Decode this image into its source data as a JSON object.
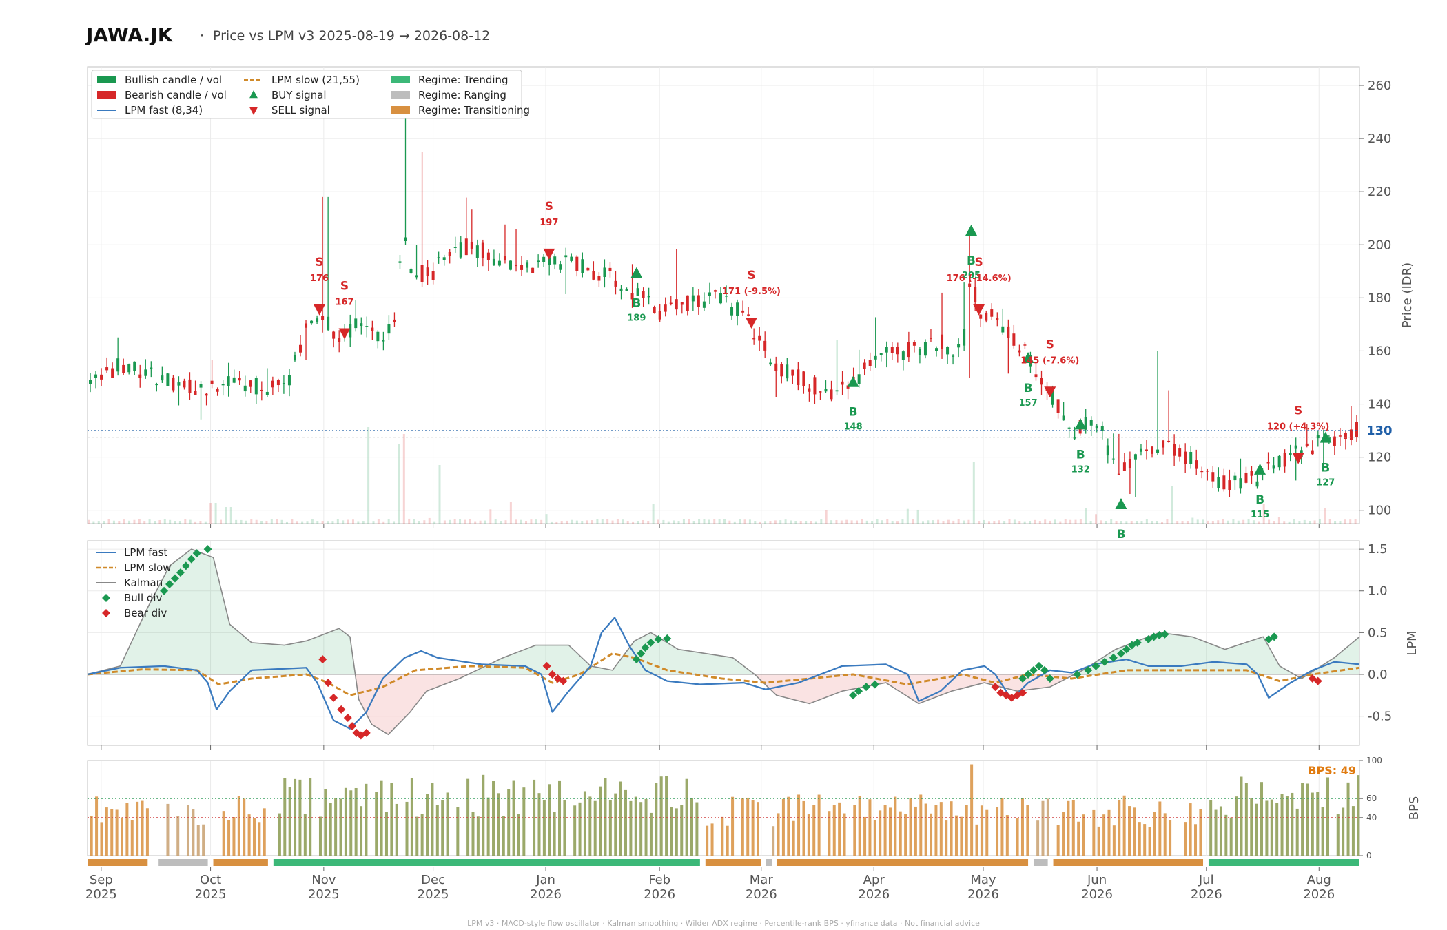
{
  "header": {
    "ticker": "JAWA.JK",
    "separator": "·",
    "subtitle": "Price vs LPM v3  2025-08-19 → 2026-08-12"
  },
  "footer": "LPM v3  ·  MACD-style flow oscillator  ·  Kalman smoothing  ·  Wilder ADX regime  ·  Percentile-rank BPS  ·  yfinance data  ·  Not financial advice",
  "colors": {
    "bull": "#1a9850",
    "bear": "#d62728",
    "fast": "#3a7abf",
    "slow": "#d08a2a",
    "kalman": "#888888",
    "trend": "#3cb878",
    "range": "#bdbdbd",
    "trans": "#d89040",
    "last_price": "#1f5fa8",
    "bps_label": "#e07b10"
  },
  "x_months": [
    {
      "m": "Sep",
      "y": "2025",
      "d": 0.125
    },
    {
      "m": "Oct",
      "y": "2025",
      "d": 1.125
    },
    {
      "m": "Nov",
      "y": "2025",
      "d": 2.16
    },
    {
      "m": "Dec",
      "y": "2025",
      "d": 3.16
    },
    {
      "m": "Jan",
      "y": "2026",
      "d": 4.19
    },
    {
      "m": "Feb",
      "y": "2026",
      "d": 5.23
    },
    {
      "m": "Mar",
      "y": "2026",
      "d": 6.16
    },
    {
      "m": "Apr",
      "y": "2026",
      "d": 7.19
    },
    {
      "m": "May",
      "y": "2026",
      "d": 8.19
    },
    {
      "m": "Jun",
      "y": "2026",
      "d": 9.23
    },
    {
      "m": "Jul",
      "y": "2026",
      "d": 10.23
    },
    {
      "m": "Aug",
      "y": "2026",
      "d": 11.26
    }
  ],
  "price_panel": {
    "ylabel": "Price (IDR)",
    "ylim": [
      95,
      267
    ],
    "yticks": [
      100,
      120,
      140,
      160,
      180,
      200,
      220,
      240,
      260
    ],
    "last_price": 130,
    "last_label": "130",
    "legend": [
      {
        "kind": "bar",
        "color": "bull",
        "label": "Bullish candle / vol"
      },
      {
        "kind": "bar",
        "color": "bear",
        "label": "Bearish candle / vol"
      },
      {
        "kind": "line",
        "color": "fast",
        "label": "LPM fast (8,34)"
      },
      {
        "kind": "dash",
        "color": "slow",
        "label": "LPM slow (21,55)"
      },
      {
        "kind": "up",
        "color": "bull",
        "label": "BUY signal"
      },
      {
        "kind": "down",
        "color": "bear",
        "label": "SELL signal"
      },
      {
        "kind": "bar",
        "color": "trend",
        "label": "Regime: Trending"
      },
      {
        "kind": "bar",
        "color": "range",
        "label": "Regime: Ranging"
      },
      {
        "kind": "bar",
        "color": "trans",
        "label": "Regime: Transitioning"
      }
    ]
  },
  "signals": [
    {
      "type": "S",
      "x": 2.12,
      "price": 176,
      "label": "176"
    },
    {
      "type": "S",
      "x": 2.35,
      "price": 167,
      "label": "167"
    },
    {
      "type": "S",
      "x": 4.22,
      "price": 197,
      "label": "197"
    },
    {
      "type": "B",
      "x": 5.02,
      "price": 189,
      "label": "189"
    },
    {
      "type": "S",
      "x": 6.07,
      "price": 171,
      "label": "171 (-9.5%)"
    },
    {
      "type": "B",
      "x": 7.0,
      "price": 148,
      "label": "148"
    },
    {
      "type": "B",
      "x": 8.08,
      "price": 205,
      "label": "205"
    },
    {
      "type": "S",
      "x": 8.15,
      "price": 176,
      "label": "176 (-14.6%)"
    },
    {
      "type": "B",
      "x": 8.6,
      "price": 157,
      "label": "157"
    },
    {
      "type": "S",
      "x": 8.8,
      "price": 145,
      "label": "145 (-7.6%)"
    },
    {
      "type": "B",
      "x": 9.08,
      "price": 132,
      "label": "132"
    },
    {
      "type": "B",
      "x": 9.45,
      "price": 102,
      "label": "B"
    },
    {
      "type": "B",
      "x": 10.72,
      "price": 115,
      "label": "115"
    },
    {
      "type": "S",
      "x": 11.07,
      "price": 120,
      "label": "120 (+4.3%)"
    },
    {
      "type": "B",
      "x": 11.32,
      "price": 127,
      "label": "127"
    }
  ],
  "lpm_panel": {
    "ylabel": "LPM",
    "ylim": [
      -0.85,
      1.6
    ],
    "yticks": [
      -0.5,
      0.0,
      0.5,
      1.0,
      1.5
    ],
    "legend": [
      {
        "kind": "line",
        "color": "fast",
        "label": "LPM fast"
      },
      {
        "kind": "dash",
        "color": "slow",
        "label": "LPM slow"
      },
      {
        "kind": "line",
        "color": "kalman",
        "label": "Kalman"
      },
      {
        "kind": "diamond",
        "color": "bull",
        "label": "Bull div"
      },
      {
        "kind": "diamond",
        "color": "bear",
        "label": "Bear div"
      }
    ]
  },
  "bps_panel": {
    "ylabel": "BPS",
    "ylim": [
      0,
      100
    ],
    "yticks": [
      0,
      40,
      60,
      100
    ],
    "label": "BPS: 49",
    "line_high": 60,
    "line_low": 40
  },
  "chart_data": {
    "type": "candlestick",
    "title": "JAWA.JK · Price vs LPM v3  2025-08-19 → 2026-08-12",
    "ylabel": "Price (IDR)",
    "ylim": [
      95,
      267
    ],
    "price_path": [
      [
        0,
        148
      ],
      [
        0.3,
        155
      ],
      [
        0.6,
        150
      ],
      [
        1.0,
        145
      ],
      [
        1.3,
        148
      ],
      [
        1.6,
        146
      ],
      [
        1.85,
        150
      ],
      [
        2.0,
        168
      ],
      [
        2.15,
        172
      ],
      [
        2.3,
        165
      ],
      [
        2.5,
        170
      ],
      [
        2.7,
        166
      ],
      [
        2.82,
        172
      ],
      [
        2.88,
        205
      ],
      [
        2.95,
        193
      ],
      [
        3.1,
        188
      ],
      [
        3.3,
        195
      ],
      [
        3.5,
        200
      ],
      [
        3.8,
        193
      ],
      [
        4.0,
        190
      ],
      [
        4.2,
        195
      ],
      [
        4.5,
        192
      ],
      [
        4.8,
        188
      ],
      [
        5.0,
        182
      ],
      [
        5.2,
        175
      ],
      [
        5.5,
        178
      ],
      [
        5.8,
        180
      ],
      [
        6.0,
        173
      ],
      [
        6.3,
        155
      ],
      [
        6.6,
        148
      ],
      [
        6.8,
        143
      ],
      [
        7.0,
        148
      ],
      [
        7.2,
        158
      ],
      [
        7.5,
        160
      ],
      [
        7.8,
        163
      ],
      [
        8.0,
        160
      ],
      [
        8.08,
        188
      ],
      [
        8.15,
        175
      ],
      [
        8.3,
        172
      ],
      [
        8.6,
        158
      ],
      [
        8.8,
        145
      ],
      [
        9.0,
        128
      ],
      [
        9.2,
        135
      ],
      [
        9.4,
        118
      ],
      [
        9.5,
        115
      ],
      [
        9.7,
        125
      ],
      [
        10.0,
        122
      ],
      [
        10.2,
        115
      ],
      [
        10.4,
        110
      ],
      [
        10.7,
        112
      ],
      [
        10.9,
        118
      ],
      [
        11.1,
        122
      ],
      [
        11.3,
        126
      ],
      [
        11.6,
        130
      ]
    ],
    "lpm_fast": [
      [
        0,
        0
      ],
      [
        0.3,
        0.08
      ],
      [
        0.7,
        0.1
      ],
      [
        1.0,
        0.05
      ],
      [
        1.1,
        -0.1
      ],
      [
        1.18,
        -0.42
      ],
      [
        1.3,
        -0.2
      ],
      [
        1.5,
        0.05
      ],
      [
        2.0,
        0.08
      ],
      [
        2.1,
        -0.1
      ],
      [
        2.25,
        -0.55
      ],
      [
        2.4,
        -0.65
      ],
      [
        2.55,
        -0.45
      ],
      [
        2.7,
        -0.05
      ],
      [
        2.9,
        0.2
      ],
      [
        3.05,
        0.28
      ],
      [
        3.2,
        0.2
      ],
      [
        3.6,
        0.12
      ],
      [
        4.0,
        0.1
      ],
      [
        4.15,
        0.0
      ],
      [
        4.25,
        -0.45
      ],
      [
        4.4,
        -0.2
      ],
      [
        4.6,
        0.1
      ],
      [
        4.7,
        0.5
      ],
      [
        4.82,
        0.68
      ],
      [
        4.95,
        0.35
      ],
      [
        5.1,
        0.05
      ],
      [
        5.3,
        -0.08
      ],
      [
        5.6,
        -0.12
      ],
      [
        6.0,
        -0.1
      ],
      [
        6.2,
        -0.18
      ],
      [
        6.5,
        -0.1
      ],
      [
        6.9,
        0.1
      ],
      [
        7.3,
        0.12
      ],
      [
        7.5,
        0.0
      ],
      [
        7.6,
        -0.32
      ],
      [
        7.8,
        -0.2
      ],
      [
        8.0,
        0.05
      ],
      [
        8.2,
        0.1
      ],
      [
        8.3,
        0.0
      ],
      [
        8.45,
        -0.3
      ],
      [
        8.6,
        -0.1
      ],
      [
        8.8,
        0.05
      ],
      [
        9.0,
        0.02
      ],
      [
        9.2,
        0.12
      ],
      [
        9.5,
        0.18
      ],
      [
        9.7,
        0.1
      ],
      [
        10.0,
        0.1
      ],
      [
        10.3,
        0.15
      ],
      [
        10.6,
        0.12
      ],
      [
        10.7,
        0.0
      ],
      [
        10.8,
        -0.28
      ],
      [
        11.0,
        -0.1
      ],
      [
        11.2,
        0.05
      ],
      [
        11.4,
        0.15
      ],
      [
        11.63,
        0.12
      ]
    ],
    "lpm_slow": [
      [
        0,
        0
      ],
      [
        0.5,
        0.06
      ],
      [
        1.0,
        0.05
      ],
      [
        1.2,
        -0.12
      ],
      [
        1.5,
        -0.05
      ],
      [
        2.0,
        0.0
      ],
      [
        2.2,
        -0.1
      ],
      [
        2.4,
        -0.25
      ],
      [
        2.7,
        -0.15
      ],
      [
        3.0,
        0.05
      ],
      [
        3.5,
        0.1
      ],
      [
        4.0,
        0.08
      ],
      [
        4.25,
        -0.1
      ],
      [
        4.5,
        0.0
      ],
      [
        4.8,
        0.25
      ],
      [
        5.0,
        0.2
      ],
      [
        5.3,
        0.05
      ],
      [
        5.8,
        -0.05
      ],
      [
        6.2,
        -0.1
      ],
      [
        6.6,
        -0.05
      ],
      [
        7.0,
        0.0
      ],
      [
        7.5,
        -0.12
      ],
      [
        8.0,
        0.0
      ],
      [
        8.3,
        -0.1
      ],
      [
        8.6,
        0.0
      ],
      [
        9.0,
        -0.05
      ],
      [
        9.5,
        0.05
      ],
      [
        10.0,
        0.05
      ],
      [
        10.6,
        0.05
      ],
      [
        10.9,
        -0.08
      ],
      [
        11.2,
        0.0
      ],
      [
        11.63,
        0.08
      ]
    ],
    "kalman": [
      [
        0,
        0
      ],
      [
        0.3,
        0.1
      ],
      [
        0.55,
        0.8
      ],
      [
        0.75,
        1.3
      ],
      [
        0.95,
        1.5
      ],
      [
        1.15,
        1.4
      ],
      [
        1.3,
        0.6
      ],
      [
        1.5,
        0.38
      ],
      [
        1.8,
        0.35
      ],
      [
        2.0,
        0.4
      ],
      [
        2.2,
        0.5
      ],
      [
        2.3,
        0.55
      ],
      [
        2.4,
        0.45
      ],
      [
        2.48,
        -0.3
      ],
      [
        2.6,
        -0.6
      ],
      [
        2.75,
        -0.72
      ],
      [
        2.95,
        -0.45
      ],
      [
        3.1,
        -0.2
      ],
      [
        3.4,
        -0.05
      ],
      [
        3.8,
        0.2
      ],
      [
        4.1,
        0.35
      ],
      [
        4.4,
        0.35
      ],
      [
        4.6,
        0.1
      ],
      [
        4.8,
        0.05
      ],
      [
        5.0,
        0.4
      ],
      [
        5.15,
        0.5
      ],
      [
        5.4,
        0.3
      ],
      [
        5.9,
        0.2
      ],
      [
        6.1,
        0.0
      ],
      [
        6.3,
        -0.25
      ],
      [
        6.6,
        -0.35
      ],
      [
        6.9,
        -0.2
      ],
      [
        7.3,
        -0.1
      ],
      [
        7.6,
        -0.35
      ],
      [
        7.9,
        -0.2
      ],
      [
        8.2,
        -0.1
      ],
      [
        8.5,
        -0.2
      ],
      [
        8.8,
        -0.15
      ],
      [
        9.1,
        0.05
      ],
      [
        9.4,
        0.3
      ],
      [
        9.8,
        0.5
      ],
      [
        10.1,
        0.45
      ],
      [
        10.4,
        0.3
      ],
      [
        10.75,
        0.45
      ],
      [
        10.9,
        0.1
      ],
      [
        11.1,
        -0.05
      ],
      [
        11.4,
        0.2
      ],
      [
        11.63,
        0.45
      ]
    ],
    "bull_div": [
      [
        0.7,
        1.0
      ],
      [
        0.75,
        1.08
      ],
      [
        0.8,
        1.15
      ],
      [
        0.85,
        1.22
      ],
      [
        0.9,
        1.3
      ],
      [
        0.95,
        1.38
      ],
      [
        1.0,
        1.45
      ],
      [
        1.1,
        1.5
      ],
      [
        5.02,
        0.18
      ],
      [
        5.06,
        0.25
      ],
      [
        5.1,
        0.32
      ],
      [
        5.15,
        0.38
      ],
      [
        5.22,
        0.42
      ],
      [
        5.3,
        0.43
      ],
      [
        7.0,
        -0.25
      ],
      [
        7.05,
        -0.2
      ],
      [
        7.12,
        -0.15
      ],
      [
        7.2,
        -0.12
      ],
      [
        8.55,
        -0.05
      ],
      [
        8.6,
        0.0
      ],
      [
        8.65,
        0.05
      ],
      [
        8.7,
        0.1
      ],
      [
        8.75,
        0.05
      ],
      [
        8.8,
        -0.05
      ],
      [
        9.05,
        0.0
      ],
      [
        9.15,
        0.05
      ],
      [
        9.22,
        0.1
      ],
      [
        9.3,
        0.15
      ],
      [
        9.38,
        0.2
      ],
      [
        9.45,
        0.25
      ],
      [
        9.5,
        0.3
      ],
      [
        9.55,
        0.35
      ],
      [
        9.6,
        0.38
      ],
      [
        9.7,
        0.42
      ],
      [
        9.75,
        0.45
      ],
      [
        9.8,
        0.47
      ],
      [
        9.85,
        0.48
      ],
      [
        10.8,
        0.42
      ],
      [
        10.85,
        0.45
      ]
    ],
    "bear_div": [
      [
        2.15,
        0.18
      ],
      [
        2.2,
        -0.1
      ],
      [
        2.25,
        -0.28
      ],
      [
        2.32,
        -0.42
      ],
      [
        2.38,
        -0.52
      ],
      [
        2.42,
        -0.62
      ],
      [
        2.46,
        -0.7
      ],
      [
        2.5,
        -0.73
      ],
      [
        2.55,
        -0.7
      ],
      [
        4.2,
        0.1
      ],
      [
        4.25,
        0.0
      ],
      [
        4.3,
        -0.05
      ],
      [
        4.35,
        -0.08
      ],
      [
        8.3,
        -0.15
      ],
      [
        8.35,
        -0.22
      ],
      [
        8.4,
        -0.25
      ],
      [
        8.45,
        -0.28
      ],
      [
        8.5,
        -0.25
      ],
      [
        8.55,
        -0.22
      ],
      [
        11.2,
        -0.05
      ],
      [
        11.25,
        -0.08
      ]
    ],
    "regimes": [
      [
        0,
        0.55,
        "trans"
      ],
      [
        0.65,
        1.1,
        "range"
      ],
      [
        1.15,
        1.65,
        "trans"
      ],
      [
        1.7,
        5.6,
        "trend"
      ],
      [
        5.65,
        6.16,
        "trans"
      ],
      [
        6.2,
        6.26,
        "range"
      ],
      [
        6.3,
        8.6,
        "trans"
      ],
      [
        8.65,
        8.78,
        "range"
      ],
      [
        8.83,
        10.2,
        "trans"
      ],
      [
        10.25,
        11.63,
        "trend"
      ]
    ]
  }
}
